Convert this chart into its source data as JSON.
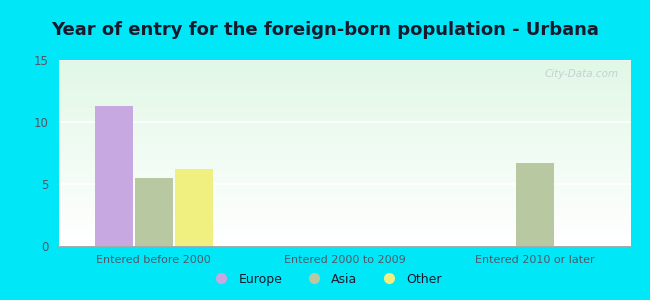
{
  "title": "Year of entry for the foreign-born population - Urbana",
  "groups": [
    "Entered before 2000",
    "Entered 2000 to 2009",
    "Entered 2010 or later"
  ],
  "series": [
    "Europe",
    "Asia",
    "Other"
  ],
  "values": [
    [
      11.3,
      5.5,
      6.2
    ],
    [
      0,
      0,
      0
    ],
    [
      0,
      6.7,
      0
    ]
  ],
  "colors": [
    "#c8a8e0",
    "#b8c8a0",
    "#f0f080"
  ],
  "ylim": [
    0,
    15
  ],
  "yticks": [
    0,
    5,
    10,
    15
  ],
  "bg_outer": "#00e8f8",
  "title_fontsize": 13,
  "title_color": "#1a1a2e",
  "tick_color": "#555566",
  "watermark": "City-Data.com",
  "bar_width": 0.2,
  "group_positions": [
    0,
    1,
    2
  ]
}
